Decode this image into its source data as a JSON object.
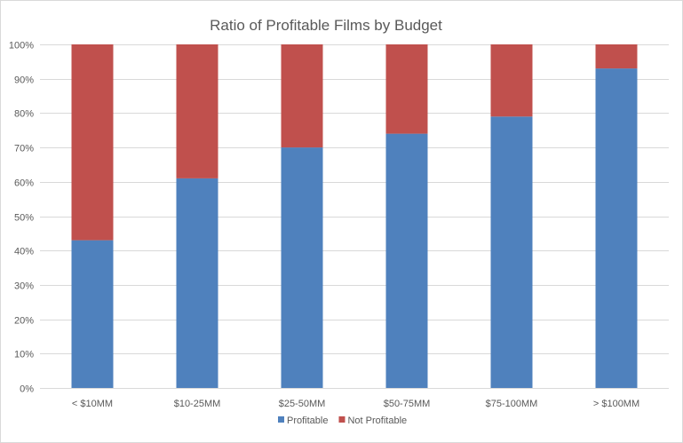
{
  "chart_data": {
    "type": "bar",
    "stacked": true,
    "title": "Ratio of Profitable Films by Budget",
    "categories": [
      "< $10MM",
      "$10-25MM",
      "$25-50MM",
      "$50-75MM",
      "$75-100MM",
      "> $100MM"
    ],
    "series": [
      {
        "name": "Profitable",
        "color": "#4f81bd",
        "values": [
          0.43,
          0.61,
          0.7,
          0.74,
          0.79,
          0.93
        ]
      },
      {
        "name": "Not Profitable",
        "color": "#c0504d",
        "values": [
          0.57,
          0.39,
          0.3,
          0.26,
          0.21,
          0.07
        ]
      }
    ],
    "ylim": [
      0,
      1
    ],
    "yticks": [
      "0%",
      "10%",
      "20%",
      "30%",
      "40%",
      "50%",
      "60%",
      "70%",
      "80%",
      "90%",
      "100%"
    ],
    "grid": true,
    "legend_position": "bottom"
  }
}
